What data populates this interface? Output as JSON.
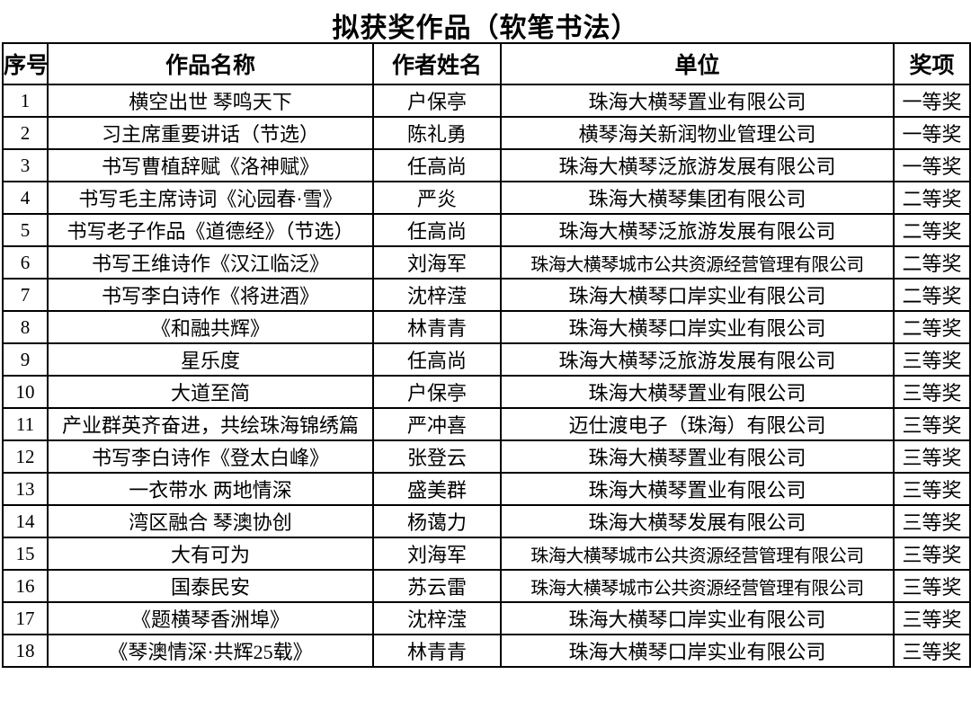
{
  "title": "拟获奖作品（软笔书法）",
  "table": {
    "headers": [
      "序号",
      "作品名称",
      "作者姓名",
      "单位",
      "奖项"
    ],
    "rows": [
      {
        "no": "1",
        "title": "横空出世 琴鸣天下",
        "author": "户保亭",
        "unit": "珠海大横琴置业有限公司",
        "award": "一等奖"
      },
      {
        "no": "2",
        "title": "习主席重要讲话（节选）",
        "author": "陈礼勇",
        "unit": "横琴海关新润物业管理公司",
        "award": "一等奖"
      },
      {
        "no": "3",
        "title": "书写曹植辞赋《洛神赋》",
        "author": "任高尚",
        "unit": "珠海大横琴泛旅游发展有限公司",
        "award": "一等奖"
      },
      {
        "no": "4",
        "title": "书写毛主席诗词《沁园春·雪》",
        "author": "严炎",
        "unit": "珠海大横琴集团有限公司",
        "award": "二等奖"
      },
      {
        "no": "5",
        "title": "书写老子作品《道德经》（节选）",
        "author": "任高尚",
        "unit": "珠海大横琴泛旅游发展有限公司",
        "award": "二等奖"
      },
      {
        "no": "6",
        "title": "书写王维诗作《汉江临泛》",
        "author": "刘海军",
        "unit": "珠海大横琴城市公共资源经营管理有限公司",
        "award": "二等奖"
      },
      {
        "no": "7",
        "title": "书写李白诗作《将进酒》",
        "author": "沈梓滢",
        "unit": "珠海大横琴口岸实业有限公司",
        "award": "二等奖"
      },
      {
        "no": "8",
        "title": "《和融共辉》",
        "author": "林青青",
        "unit": "珠海大横琴口岸实业有限公司",
        "award": "二等奖"
      },
      {
        "no": "9",
        "title": "星乐度",
        "author": "任高尚",
        "unit": "珠海大横琴泛旅游发展有限公司",
        "award": "三等奖"
      },
      {
        "no": "10",
        "title": "大道至简",
        "author": "户保亭",
        "unit": "珠海大横琴置业有限公司",
        "award": "三等奖"
      },
      {
        "no": "11",
        "title": "产业群英齐奋进，共绘珠海锦绣篇",
        "author": "严冲喜",
        "unit": "迈仕渡电子（珠海）有限公司",
        "award": "三等奖"
      },
      {
        "no": "12",
        "title": "书写李白诗作《登太白峰》",
        "author": "张登云",
        "unit": "珠海大横琴置业有限公司",
        "award": "三等奖"
      },
      {
        "no": "13",
        "title": "一衣带水 两地情深",
        "author": "盛美群",
        "unit": "珠海大横琴置业有限公司",
        "award": "三等奖"
      },
      {
        "no": "14",
        "title": "湾区融合 琴澳协创",
        "author": "杨蔼力",
        "unit": "珠海大横琴发展有限公司",
        "award": "三等奖"
      },
      {
        "no": "15",
        "title": "大有可为",
        "author": "刘海军",
        "unit": "珠海大横琴城市公共资源经营管理有限公司",
        "award": "三等奖"
      },
      {
        "no": "16",
        "title": "国泰民安",
        "author": "苏云雷",
        "unit": "珠海大横琴城市公共资源经营管理有限公司",
        "award": "三等奖"
      },
      {
        "no": "17",
        "title": "《题横琴香洲埠》",
        "author": "沈梓滢",
        "unit": "珠海大横琴口岸实业有限公司",
        "award": "三等奖"
      },
      {
        "no": "18",
        "title": "《琴澳情深·共辉25载》",
        "author": "林青青",
        "unit": "珠海大横琴口岸实业有限公司",
        "award": "三等奖"
      }
    ]
  },
  "colors": {
    "border": "#000000",
    "text": "#000000",
    "background": "#ffffff"
  }
}
